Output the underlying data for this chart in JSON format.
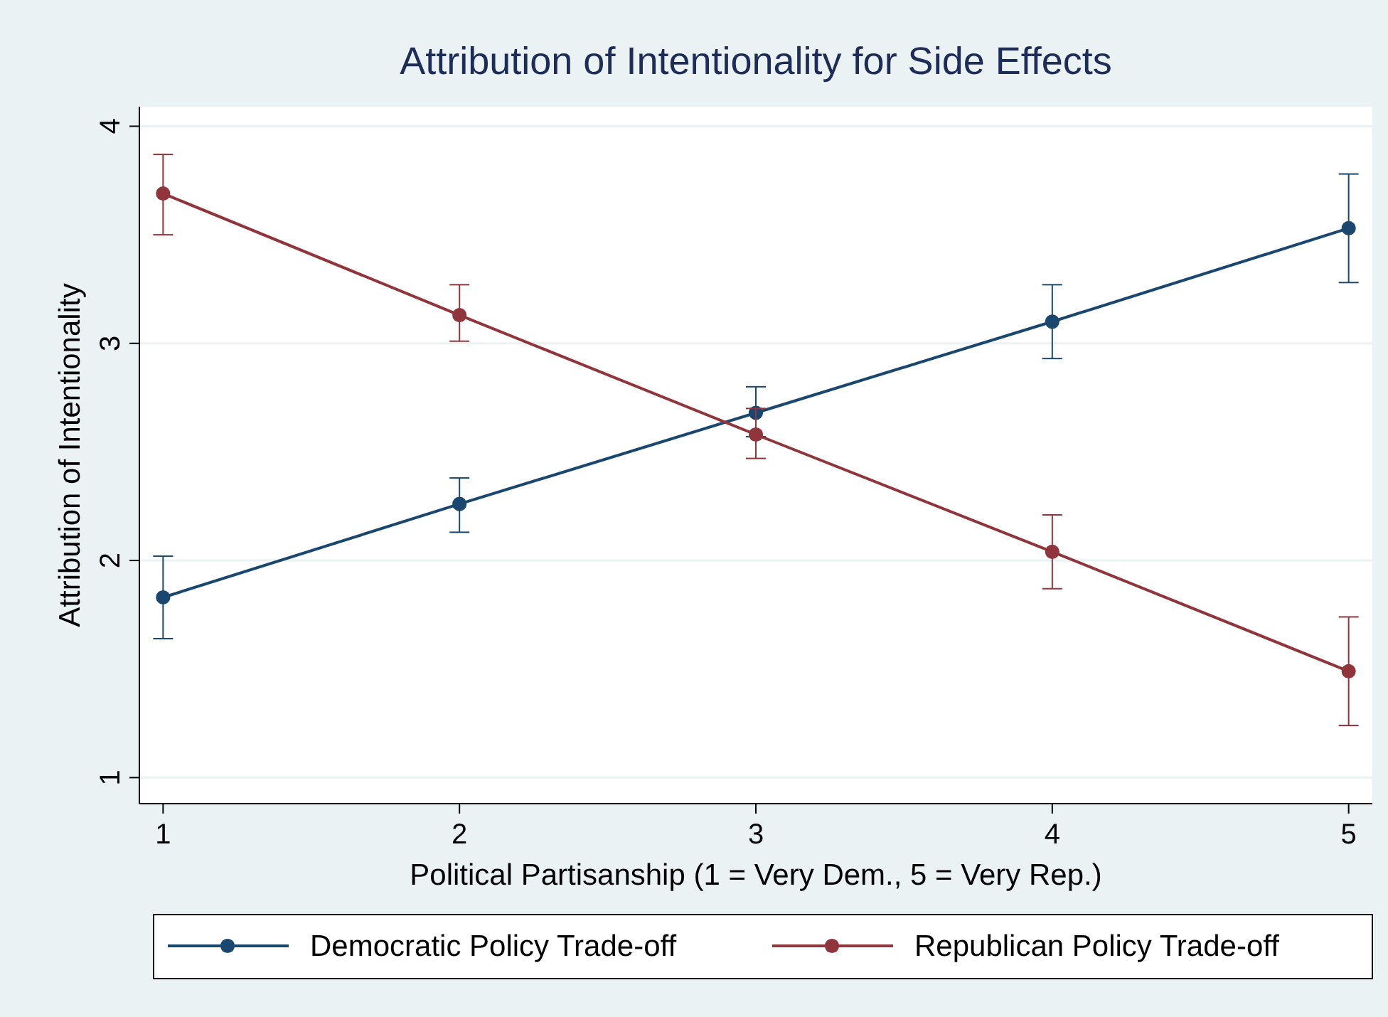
{
  "chart_data": {
    "type": "line",
    "title": "Attribution of Intentionality for Side Effects",
    "xlabel": "Political Partisanship (1 = Very Dem., 5 = Very Rep.)",
    "ylabel": "Attribution of Intentionality",
    "x": [
      1,
      2,
      3,
      4,
      5
    ],
    "series": [
      {
        "name": "Democratic Policy Trade-off",
        "color": "#1a476f",
        "values": [
          1.83,
          2.26,
          2.68,
          3.1,
          3.53
        ],
        "errors": [
          [
            1.64,
            2.02
          ],
          [
            2.13,
            2.38
          ],
          [
            2.57,
            2.8
          ],
          [
            2.93,
            3.27
          ],
          [
            3.28,
            3.78
          ]
        ]
      },
      {
        "name": "Republican Policy Trade-off",
        "color": "#90353b",
        "values": [
          3.69,
          3.13,
          2.58,
          2.04,
          1.49
        ],
        "errors": [
          [
            3.5,
            3.87
          ],
          [
            3.01,
            3.27
          ],
          [
            2.47,
            2.7
          ],
          [
            1.87,
            2.21
          ],
          [
            1.24,
            1.74
          ]
        ]
      }
    ],
    "xlim": [
      0.92,
      5.08
    ],
    "xticks": [
      1,
      2,
      3,
      4,
      5
    ],
    "ylim": [
      0.88,
      4.09
    ],
    "yticks": [
      1,
      2,
      3,
      4
    ],
    "grid": "y",
    "legend": "bottom",
    "marker": "circle",
    "line_style": "solid"
  }
}
